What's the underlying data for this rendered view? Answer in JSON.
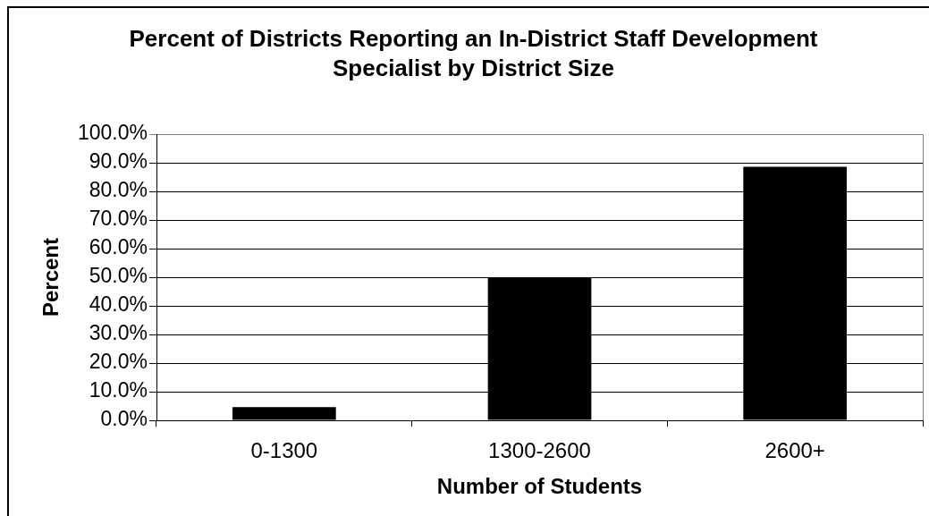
{
  "chart_data": {
    "type": "bar",
    "title": "Percent of Districts Reporting an In-District Staff Development Specialist by District Size",
    "xlabel": "Number of Students",
    "ylabel": "Percent",
    "categories": [
      "0-1300",
      "1300-2600",
      "2600+"
    ],
    "values": [
      4.6,
      50.0,
      88.6
    ],
    "color": "#000000",
    "ylim": [
      0,
      100
    ],
    "yticks": [
      {
        "value": 0,
        "label": "0.0%"
      },
      {
        "value": 10,
        "label": "10.0%"
      },
      {
        "value": 20,
        "label": "20.0%"
      },
      {
        "value": 30,
        "label": "30.0%"
      },
      {
        "value": 40,
        "label": "40.0%"
      },
      {
        "value": 50,
        "label": "50.0%"
      },
      {
        "value": 60,
        "label": "60.0%"
      },
      {
        "value": 70,
        "label": "70.0%"
      },
      {
        "value": 80,
        "label": "80.0%"
      },
      {
        "value": 90,
        "label": "90.0%"
      },
      {
        "value": 100,
        "label": "100.0%"
      }
    ],
    "grid": "y"
  }
}
